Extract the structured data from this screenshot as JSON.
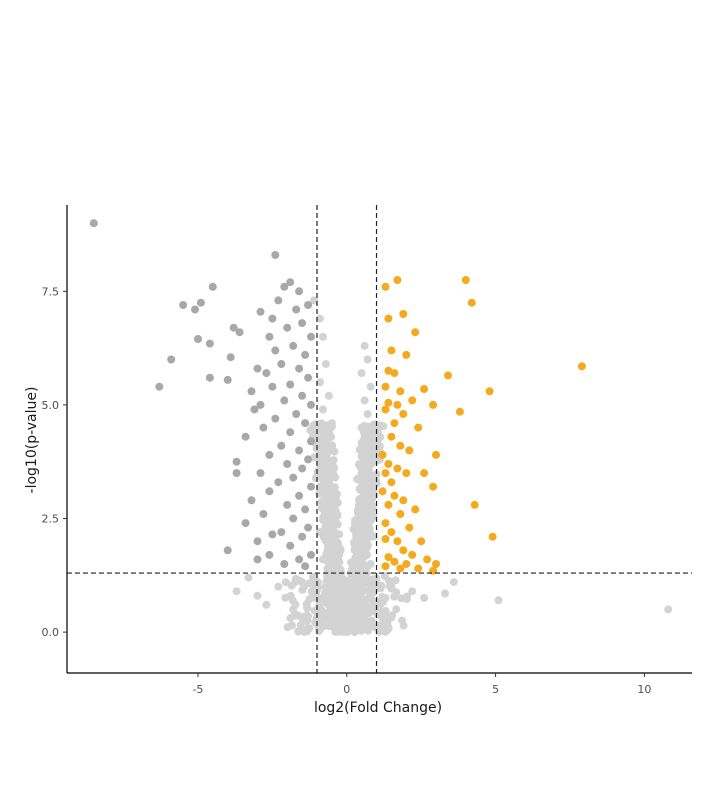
{
  "chart_data": {
    "type": "scatter",
    "title": "",
    "xlabel": "log2(Fold Change)",
    "ylabel": "-log10(p-value)",
    "xlim": [
      -9.4,
      11.6
    ],
    "ylim": [
      -0.9,
      9.4
    ],
    "x_ticks": [
      -5,
      0,
      5,
      10
    ],
    "x_tick_labels": [
      "-5",
      "0",
      "5",
      "10"
    ],
    "y_ticks": [
      0.0,
      2.5,
      5.0,
      7.5
    ],
    "y_tick_labels": [
      "0.0",
      "2.5",
      "5.0",
      "7.5"
    ],
    "grid": false,
    "legend": "none",
    "thresholds": {
      "log2fc": [
        -1,
        1
      ],
      "neg_log10_p": 1.3
    },
    "colors": {
      "up": "#f5a91e",
      "down": "#a8a8a8",
      "ns": "#d3d3d3",
      "threshold_line": "#222222",
      "axis": "#000000"
    },
    "series": [
      {
        "category": "up",
        "points": [
          [
            1.7,
            7.75
          ],
          [
            4.0,
            7.75
          ],
          [
            1.3,
            7.6
          ],
          [
            4.2,
            7.25
          ],
          [
            1.9,
            7.0
          ],
          [
            1.4,
            6.9
          ],
          [
            2.3,
            6.6
          ],
          [
            1.5,
            6.2
          ],
          [
            2.0,
            6.1
          ],
          [
            7.9,
            5.85
          ],
          [
            1.4,
            5.75
          ],
          [
            1.6,
            5.7
          ],
          [
            3.4,
            5.65
          ],
          [
            1.3,
            5.4
          ],
          [
            2.6,
            5.35
          ],
          [
            1.8,
            5.3
          ],
          [
            4.8,
            5.3
          ],
          [
            1.4,
            5.05
          ],
          [
            1.7,
            5.0
          ],
          [
            2.2,
            5.1
          ],
          [
            2.9,
            5.0
          ],
          [
            1.3,
            4.9
          ],
          [
            1.9,
            4.8
          ],
          [
            3.8,
            4.85
          ],
          [
            1.6,
            4.6
          ],
          [
            2.4,
            4.5
          ],
          [
            1.5,
            4.3
          ],
          [
            1.8,
            4.1
          ],
          [
            2.1,
            4.0
          ],
          [
            1.2,
            3.9
          ],
          [
            3.0,
            3.9
          ],
          [
            1.4,
            3.7
          ],
          [
            1.7,
            3.6
          ],
          [
            2.0,
            3.5
          ],
          [
            1.3,
            3.5
          ],
          [
            2.6,
            3.5
          ],
          [
            1.5,
            3.3
          ],
          [
            2.9,
            3.2
          ],
          [
            1.2,
            3.1
          ],
          [
            1.6,
            3.0
          ],
          [
            1.9,
            2.9
          ],
          [
            2.3,
            2.7
          ],
          [
            1.4,
            2.8
          ],
          [
            1.8,
            2.6
          ],
          [
            1.3,
            2.4
          ],
          [
            4.3,
            2.8
          ],
          [
            2.1,
            2.3
          ],
          [
            1.5,
            2.2
          ],
          [
            1.7,
            2.0
          ],
          [
            2.5,
            2.0
          ],
          [
            1.3,
            2.05
          ],
          [
            4.9,
            2.1
          ],
          [
            1.9,
            1.8
          ],
          [
            2.2,
            1.7
          ],
          [
            1.4,
            1.65
          ],
          [
            2.7,
            1.6
          ],
          [
            1.6,
            1.55
          ],
          [
            2.0,
            1.5
          ],
          [
            3.0,
            1.5
          ],
          [
            1.3,
            1.45
          ],
          [
            2.4,
            1.4
          ],
          [
            2.9,
            1.35
          ],
          [
            1.8,
            1.4
          ]
        ]
      },
      {
        "category": "down",
        "points": [
          [
            -8.5,
            9.0
          ],
          [
            -2.4,
            8.3
          ],
          [
            -1.9,
            7.7
          ],
          [
            -2.1,
            7.6
          ],
          [
            -4.5,
            7.6
          ],
          [
            -1.6,
            7.5
          ],
          [
            -5.5,
            7.2
          ],
          [
            -4.9,
            7.25
          ],
          [
            -5.1,
            7.1
          ],
          [
            -2.3,
            7.3
          ],
          [
            -1.7,
            7.1
          ],
          [
            -1.3,
            7.2
          ],
          [
            -2.9,
            7.05
          ],
          [
            -2.5,
            6.9
          ],
          [
            -1.5,
            6.8
          ],
          [
            -3.8,
            6.7
          ],
          [
            -3.6,
            6.6
          ],
          [
            -2.0,
            6.7
          ],
          [
            -2.6,
            6.5
          ],
          [
            -1.2,
            6.5
          ],
          [
            -5.0,
            6.45
          ],
          [
            -4.6,
            6.35
          ],
          [
            -1.8,
            6.3
          ],
          [
            -2.4,
            6.2
          ],
          [
            -1.4,
            6.1
          ],
          [
            -5.9,
            6.0
          ],
          [
            -3.9,
            6.05
          ],
          [
            -2.2,
            5.9
          ],
          [
            -1.6,
            5.8
          ],
          [
            -3.0,
            5.8
          ],
          [
            -2.7,
            5.7
          ],
          [
            -1.3,
            5.6
          ],
          [
            -4.0,
            5.55
          ],
          [
            -4.6,
            5.6
          ],
          [
            -6.3,
            5.4
          ],
          [
            -1.9,
            5.45
          ],
          [
            -2.5,
            5.4
          ],
          [
            -3.2,
            5.3
          ],
          [
            -1.5,
            5.2
          ],
          [
            -2.1,
            5.1
          ],
          [
            -2.9,
            5.0
          ],
          [
            -1.2,
            5.0
          ],
          [
            -3.1,
            4.9
          ],
          [
            -1.7,
            4.8
          ],
          [
            -2.4,
            4.7
          ],
          [
            -1.4,
            4.6
          ],
          [
            -2.8,
            4.5
          ],
          [
            -1.9,
            4.4
          ],
          [
            -3.4,
            4.3
          ],
          [
            -1.2,
            4.2
          ],
          [
            -2.2,
            4.1
          ],
          [
            -1.6,
            4.0
          ],
          [
            -2.6,
            3.9
          ],
          [
            -1.3,
            3.8
          ],
          [
            -3.7,
            3.75
          ],
          [
            -2.0,
            3.7
          ],
          [
            -1.5,
            3.6
          ],
          [
            -2.9,
            3.5
          ],
          [
            -1.8,
            3.4
          ],
          [
            -3.7,
            3.5
          ],
          [
            -2.3,
            3.3
          ],
          [
            -1.2,
            3.2
          ],
          [
            -2.6,
            3.1
          ],
          [
            -1.6,
            3.0
          ],
          [
            -3.2,
            2.9
          ],
          [
            -2.0,
            2.8
          ],
          [
            -1.4,
            2.7
          ],
          [
            -2.8,
            2.6
          ],
          [
            -1.8,
            2.5
          ],
          [
            -3.4,
            2.4
          ],
          [
            -1.3,
            2.3
          ],
          [
            -2.2,
            2.2
          ],
          [
            -2.5,
            2.15
          ],
          [
            -1.5,
            2.1
          ],
          [
            -3.0,
            2.0
          ],
          [
            -1.9,
            1.9
          ],
          [
            -4.0,
            1.8
          ],
          [
            -1.2,
            1.7
          ],
          [
            -2.6,
            1.7
          ],
          [
            -1.6,
            1.6
          ],
          [
            -2.1,
            1.5
          ],
          [
            -3.0,
            1.6
          ],
          [
            -1.4,
            1.45
          ]
        ]
      },
      {
        "category": "ns",
        "points": [
          [
            -1.1,
            7.3
          ],
          [
            -0.9,
            6.9
          ],
          [
            -0.8,
            6.5
          ],
          [
            0.6,
            6.3
          ],
          [
            0.7,
            6.0
          ],
          [
            0.5,
            5.7
          ],
          [
            -0.7,
            5.9
          ],
          [
            -0.9,
            5.5
          ],
          [
            0.8,
            5.4
          ],
          [
            -0.6,
            5.2
          ],
          [
            0.6,
            5.1
          ],
          [
            -0.8,
            4.9
          ],
          [
            0.7,
            4.8
          ],
          [
            -0.5,
            4.6
          ],
          [
            0.5,
            4.5
          ],
          [
            -0.7,
            4.4
          ],
          [
            0.8,
            4.3
          ],
          [
            -0.9,
            4.2
          ],
          [
            0.9,
            4.1
          ],
          [
            -0.6,
            4.0
          ],
          [
            0.6,
            3.9
          ],
          [
            -0.8,
            3.8
          ],
          [
            0.8,
            3.7
          ],
          [
            -0.5,
            3.6
          ],
          [
            0.5,
            3.5
          ],
          [
            -0.7,
            3.4
          ],
          [
            0.7,
            3.3
          ],
          [
            -0.9,
            3.2
          ],
          [
            0.9,
            3.1
          ],
          [
            -0.6,
            3.0
          ],
          [
            0.6,
            2.9
          ],
          [
            -0.8,
            2.8
          ],
          [
            0.8,
            2.7
          ],
          [
            -0.4,
            2.6
          ],
          [
            0.4,
            2.5
          ],
          [
            -0.7,
            2.4
          ],
          [
            0.7,
            2.3
          ],
          [
            -0.9,
            2.2
          ],
          [
            0.9,
            2.1
          ],
          [
            -0.5,
            2.0
          ],
          [
            0.5,
            1.9
          ],
          [
            -0.6,
            1.8
          ],
          [
            0.6,
            1.7
          ],
          [
            -0.8,
            1.6
          ],
          [
            0.8,
            1.5
          ],
          [
            -0.3,
            1.4
          ],
          [
            0.3,
            1.3
          ],
          [
            -0.5,
            1.2
          ],
          [
            0.5,
            1.1
          ],
          [
            -0.7,
            1.0
          ],
          [
            0.7,
            0.9
          ],
          [
            -0.2,
            0.8
          ],
          [
            0.2,
            0.7
          ],
          [
            -0.4,
            0.6
          ],
          [
            0.4,
            0.5
          ],
          [
            -0.6,
            0.4
          ],
          [
            0.6,
            0.3
          ],
          [
            -0.1,
            0.2
          ],
          [
            0.1,
            0.1
          ],
          [
            0.0,
            0.0
          ],
          [
            -0.9,
            0.7
          ],
          [
            0.9,
            0.6
          ],
          [
            -1.5,
            1.1
          ],
          [
            1.5,
            1.0
          ],
          [
            -2.3,
            1.0
          ],
          [
            2.2,
            0.9
          ],
          [
            -3.0,
            0.8
          ],
          [
            2.6,
            0.75
          ],
          [
            -3.7,
            0.9
          ],
          [
            3.3,
            0.85
          ],
          [
            -2.7,
            0.6
          ],
          [
            5.1,
            0.7
          ],
          [
            -1.8,
            0.5
          ],
          [
            10.8,
            0.5
          ],
          [
            -1.3,
            0.35
          ],
          [
            1.2,
            0.3
          ],
          [
            -3.3,
            1.2
          ],
          [
            3.6,
            1.1
          ]
        ]
      }
    ]
  }
}
